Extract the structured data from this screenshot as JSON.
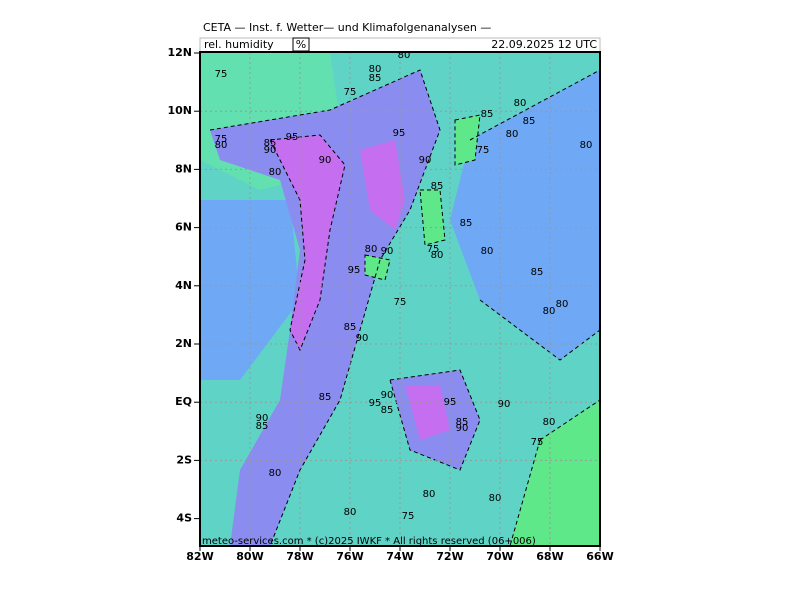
{
  "header": {
    "title": "CETA — Inst. f. Wetter— und Klimafolgenanalysen —",
    "field": "rel. humidity",
    "unit": "%",
    "valid_time": "22.09.2025 12 UTC"
  },
  "axes": {
    "lat_labels": [
      "12N",
      "10N",
      "8N",
      "6N",
      "4N",
      "2N",
      "EQ",
      "2S",
      "4S"
    ],
    "lon_labels": [
      "82W",
      "80W",
      "78W",
      "76W",
      "74W",
      "72W",
      "70W",
      "68W",
      "66W"
    ]
  },
  "contour_labels": [
    "80",
    "80",
    "85",
    "75",
    "75",
    "80",
    "85",
    "85",
    "80",
    "95",
    "95",
    "75",
    "80",
    "85",
    "90",
    "90",
    "75",
    "80",
    "90",
    "80",
    "85",
    "85",
    "80",
    "90",
    "75",
    "80",
    "80",
    "85",
    "95",
    "75",
    "80",
    "80",
    "85",
    "90",
    "90",
    "85",
    "95",
    "85",
    "95",
    "90",
    "90",
    "85",
    "85",
    "90",
    "80",
    "75",
    "80",
    "80",
    "80",
    "80",
    "75"
  ],
  "footer": "meteo-services.com * (c)2025 IWKF * All rights reserved (06+006)"
}
